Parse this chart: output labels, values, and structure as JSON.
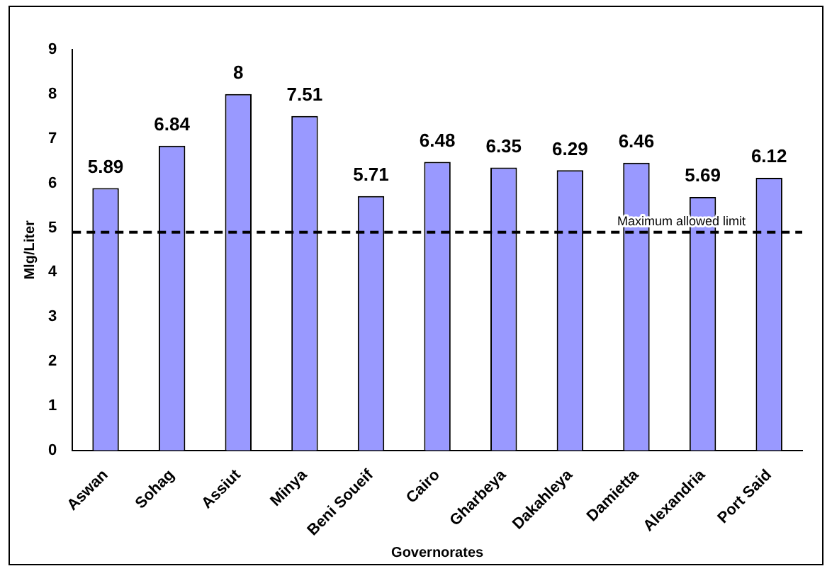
{
  "chart_data": {
    "type": "bar",
    "xlabel": "Governorates",
    "ylabel": "Mlg/Liter",
    "categories": [
      "Aswan",
      "Sohag",
      "Assiut",
      "Minya",
      "Beni Soueif",
      "Cairo",
      "Gharbeya",
      "Dakahleya",
      "Damietta",
      "Alexandria",
      "Port Said"
    ],
    "values": [
      5.89,
      6.84,
      8,
      7.51,
      5.71,
      6.48,
      6.35,
      6.29,
      6.46,
      5.69,
      6.12
    ],
    "color": "#9999ff",
    "ylim": [
      0,
      9
    ],
    "yticks": [
      0,
      1,
      2,
      3,
      4,
      5,
      6,
      7,
      8,
      9
    ],
    "grid": false,
    "data_labels": true,
    "ref_lines": [
      {
        "axis": "y",
        "value": 4.9,
        "label": "Maximum allowed limit",
        "line_style": "dashed",
        "color": "#000000"
      }
    ]
  }
}
